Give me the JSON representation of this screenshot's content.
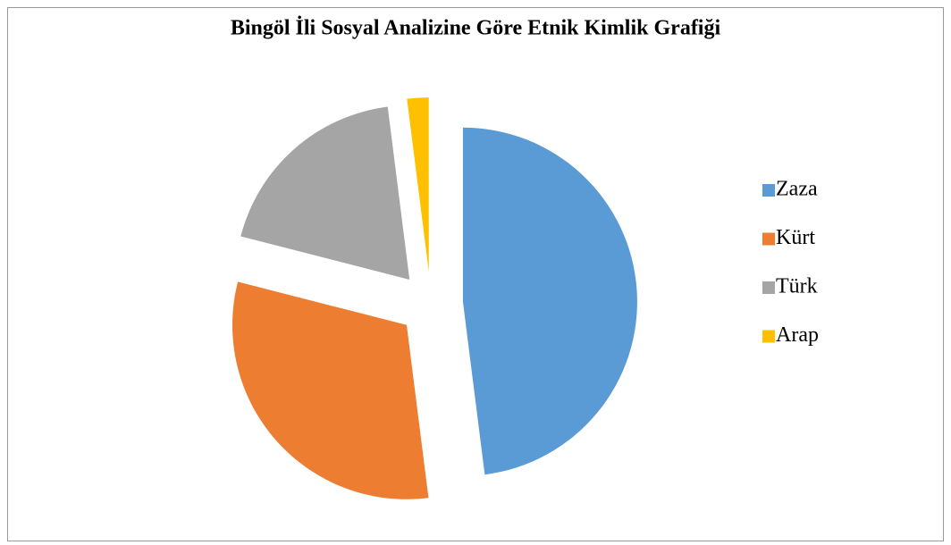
{
  "chart_data": {
    "type": "pie",
    "title": "Bingöl İli Sosyal Analizine Göre Etnik Kimlik Grafiği",
    "categories": [
      "Zaza",
      "Kürt",
      "Türk",
      "Arap"
    ],
    "values": [
      48,
      31,
      19,
      2
    ],
    "colors": [
      "#5b9bd5",
      "#ed7d31",
      "#a5a5a5",
      "#ffc000"
    ],
    "legend": "right"
  }
}
